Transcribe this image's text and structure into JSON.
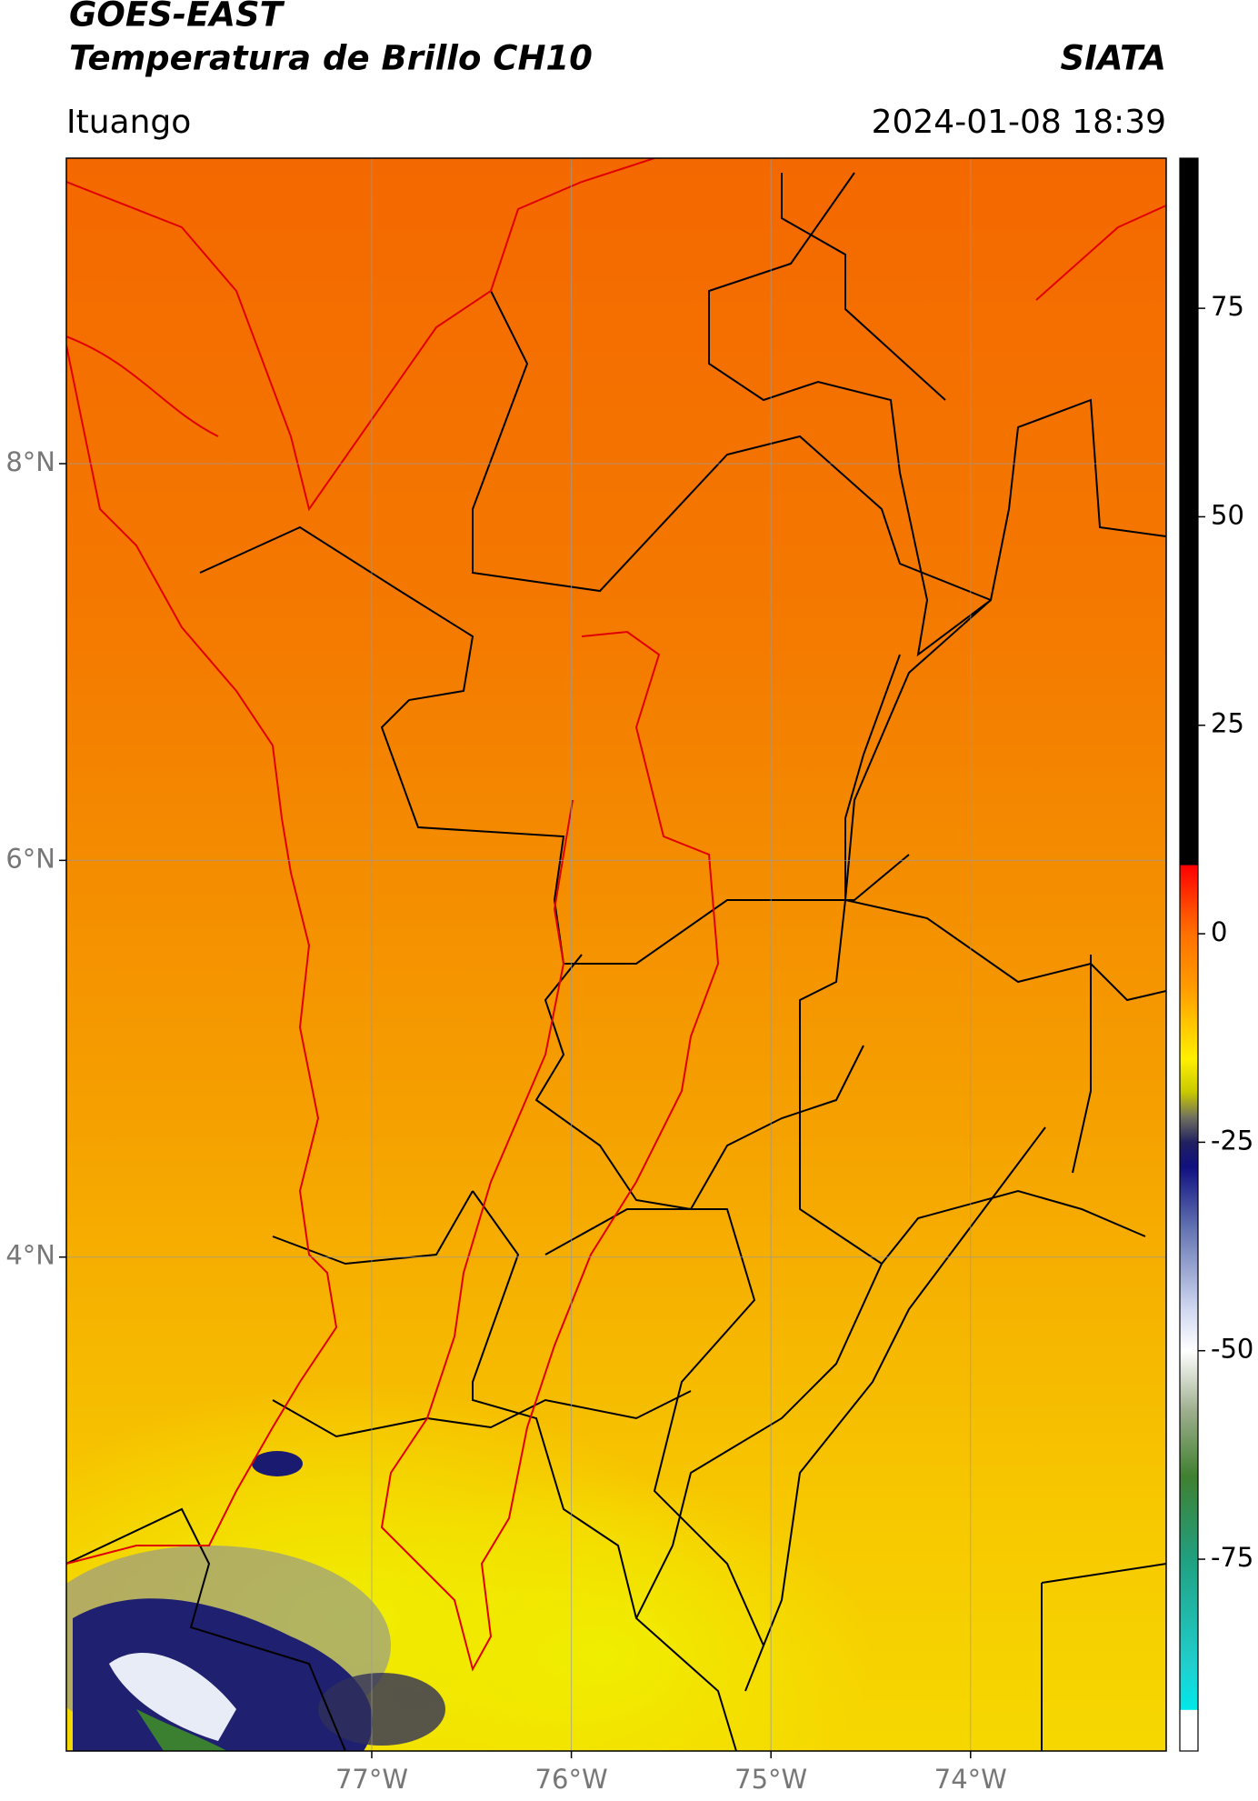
{
  "header": {
    "title": "GOES-EAST",
    "subtitle": "Temperatura de Brillo CH10",
    "brand": "SIATA",
    "location": "Ituango",
    "datetime": "2024-01-08 18:39"
  },
  "map": {
    "lonlim": [
      -78.53,
      -73.02
    ],
    "latlim": [
      1.51,
      9.54
    ],
    "lonticks": [
      {
        "value": -77,
        "label": "77°W"
      },
      {
        "value": -76,
        "label": "76°W"
      },
      {
        "value": -75,
        "label": "75°W"
      },
      {
        "value": -74,
        "label": "74°W"
      }
    ],
    "latticks": [
      {
        "value": 8,
        "label": "8°N"
      },
      {
        "value": 6,
        "label": "6°N"
      },
      {
        "value": 4,
        "label": "4°N"
      }
    ],
    "grid": true
  },
  "colorbar": {
    "lim": [
      -98,
      93
    ],
    "ticks": [
      75,
      50,
      25,
      0,
      -25,
      -50,
      -75
    ],
    "colormap": [
      {
        "value": 93,
        "color": "#000000"
      },
      {
        "value": 8.3,
        "color": "#000000"
      },
      {
        "value": 8.2,
        "color": "#ff0000"
      },
      {
        "value": 3,
        "color": "#ff4a00"
      },
      {
        "value": 0,
        "color": "#ff7000"
      },
      {
        "value": -7,
        "color": "#ffa000"
      },
      {
        "value": -15,
        "color": "#fff000"
      },
      {
        "value": -19,
        "color": "#c8c800"
      },
      {
        "value": -22,
        "color": "#707060"
      },
      {
        "value": -25,
        "color": "#202060"
      },
      {
        "value": -28,
        "color": "#101080"
      },
      {
        "value": -35,
        "color": "#6070b0"
      },
      {
        "value": -45,
        "color": "#d0d8f0"
      },
      {
        "value": -50,
        "color": "#ffffff"
      },
      {
        "value": -57,
        "color": "#a0b090"
      },
      {
        "value": -65,
        "color": "#408030"
      },
      {
        "value": -75,
        "color": "#20a080"
      },
      {
        "value": -88,
        "color": "#20d0d0"
      },
      {
        "value": -93,
        "color": "#00e8e8"
      },
      {
        "value": -93.1,
        "color": "#ffffff"
      },
      {
        "value": -98,
        "color": "#ffffff"
      }
    ]
  }
}
